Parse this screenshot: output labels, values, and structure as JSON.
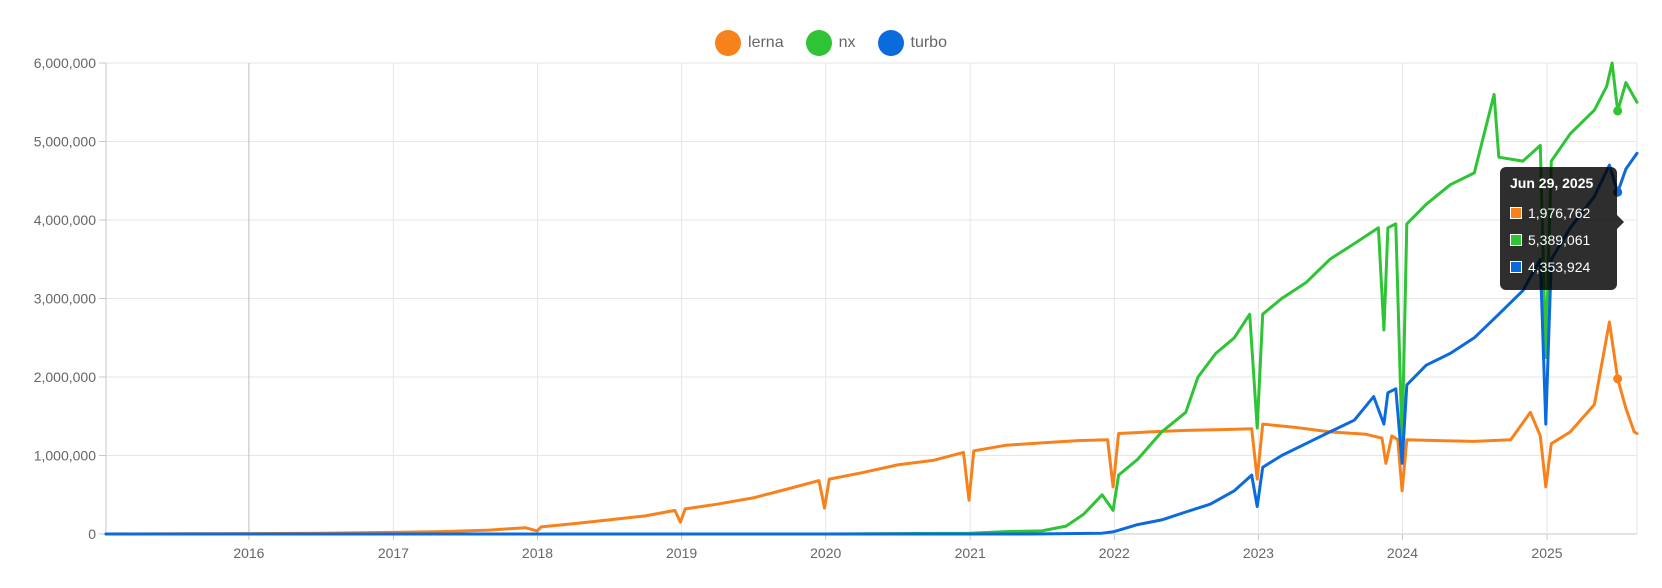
{
  "chart_data": {
    "type": "line",
    "title": "",
    "xlabel": "",
    "ylabel": "",
    "ylim": [
      0,
      6000000
    ],
    "xlim": [
      "2015-01-04",
      "2025-08-17"
    ],
    "grid": true,
    "legend_position": "top-center",
    "y_ticks": [
      "0",
      "1,000,000",
      "2,000,000",
      "3,000,000",
      "4,000,000",
      "5,000,000",
      "6,000,000"
    ],
    "x_ticks": [
      "2016",
      "2017",
      "2018",
      "2019",
      "2020",
      "2021",
      "2022",
      "2023",
      "2024",
      "2025"
    ],
    "series": [
      {
        "name": "lerna",
        "color": "#f7821b",
        "points": [
          [
            "2015-01-04",
            0
          ],
          [
            "2015-07-01",
            2000
          ],
          [
            "2016-01-01",
            5000
          ],
          [
            "2016-07-01",
            10000
          ],
          [
            "2017-01-01",
            20000
          ],
          [
            "2017-05-01",
            30000
          ],
          [
            "2017-09-01",
            50000
          ],
          [
            "2017-12-01",
            80000
          ],
          [
            "2017-12-31",
            40000
          ],
          [
            "2018-01-10",
            90000
          ],
          [
            "2018-04-01",
            130000
          ],
          [
            "2018-07-01",
            180000
          ],
          [
            "2018-10-01",
            230000
          ],
          [
            "2018-12-15",
            300000
          ],
          [
            "2018-12-29",
            150000
          ],
          [
            "2019-01-10",
            320000
          ],
          [
            "2019-04-01",
            380000
          ],
          [
            "2019-07-01",
            460000
          ],
          [
            "2019-10-01",
            580000
          ],
          [
            "2019-12-15",
            680000
          ],
          [
            "2019-12-29",
            330000
          ],
          [
            "2020-01-10",
            700000
          ],
          [
            "2020-04-01",
            780000
          ],
          [
            "2020-07-01",
            880000
          ],
          [
            "2020-10-01",
            940000
          ],
          [
            "2020-12-15",
            1040000
          ],
          [
            "2020-12-29",
            430000
          ],
          [
            "2021-01-10",
            1060000
          ],
          [
            "2021-04-01",
            1130000
          ],
          [
            "2021-07-01",
            1160000
          ],
          [
            "2021-10-01",
            1190000
          ],
          [
            "2021-12-15",
            1200000
          ],
          [
            "2021-12-29",
            600000
          ],
          [
            "2022-01-12",
            1280000
          ],
          [
            "2022-04-01",
            1300000
          ],
          [
            "2022-07-01",
            1320000
          ],
          [
            "2022-10-01",
            1330000
          ],
          [
            "2022-12-15",
            1340000
          ],
          [
            "2022-12-29",
            700000
          ],
          [
            "2023-01-12",
            1400000
          ],
          [
            "2023-04-01",
            1360000
          ],
          [
            "2023-07-01",
            1300000
          ],
          [
            "2023-10-01",
            1270000
          ],
          [
            "2023-11-10",
            1220000
          ],
          [
            "2023-11-20",
            900000
          ],
          [
            "2023-12-05",
            1250000
          ],
          [
            "2023-12-20",
            1200000
          ],
          [
            "2023-12-31",
            550000
          ],
          [
            "2024-01-12",
            1200000
          ],
          [
            "2024-04-01",
            1190000
          ],
          [
            "2024-07-01",
            1180000
          ],
          [
            "2024-10-01",
            1200000
          ],
          [
            "2024-11-20",
            1550000
          ],
          [
            "2024-12-15",
            1250000
          ],
          [
            "2024-12-29",
            600000
          ],
          [
            "2025-01-12",
            1150000
          ],
          [
            "2025-03-01",
            1300000
          ],
          [
            "2025-05-01",
            1650000
          ],
          [
            "2025-06-08",
            2700000
          ],
          [
            "2025-06-29",
            1976762
          ],
          [
            "2025-07-20",
            1600000
          ],
          [
            "2025-08-10",
            1300000
          ],
          [
            "2025-08-17",
            1280000
          ]
        ]
      },
      {
        "name": "nx",
        "color": "#2ec435",
        "points": [
          [
            "2015-01-04",
            0
          ],
          [
            "2016-01-01",
            0
          ],
          [
            "2017-01-01",
            0
          ],
          [
            "2018-01-01",
            0
          ],
          [
            "2019-01-01",
            0
          ],
          [
            "2020-01-01",
            0
          ],
          [
            "2021-01-01",
            10000
          ],
          [
            "2021-04-01",
            30000
          ],
          [
            "2021-07-01",
            40000
          ],
          [
            "2021-09-01",
            100000
          ],
          [
            "2021-10-15",
            250000
          ],
          [
            "2021-12-01",
            500000
          ],
          [
            "2021-12-29",
            300000
          ],
          [
            "2022-01-12",
            750000
          ],
          [
            "2022-03-01",
            950000
          ],
          [
            "2022-05-01",
            1300000
          ],
          [
            "2022-07-01",
            1550000
          ],
          [
            "2022-08-01",
            2000000
          ],
          [
            "2022-09-15",
            2300000
          ],
          [
            "2022-11-01",
            2500000
          ],
          [
            "2022-12-10",
            2800000
          ],
          [
            "2022-12-29",
            1350000
          ],
          [
            "2023-01-12",
            2800000
          ],
          [
            "2023-03-01",
            3000000
          ],
          [
            "2023-05-01",
            3200000
          ],
          [
            "2023-07-01",
            3500000
          ],
          [
            "2023-09-01",
            3700000
          ],
          [
            "2023-11-01",
            3900000
          ],
          [
            "2023-11-15",
            2600000
          ],
          [
            "2023-11-25",
            3900000
          ],
          [
            "2023-12-15",
            3950000
          ],
          [
            "2023-12-31",
            1150000
          ],
          [
            "2024-01-12",
            3950000
          ],
          [
            "2024-03-01",
            4200000
          ],
          [
            "2024-05-01",
            4450000
          ],
          [
            "2024-07-01",
            4600000
          ],
          [
            "2024-08-20",
            5600000
          ],
          [
            "2024-09-01",
            4800000
          ],
          [
            "2024-11-01",
            4750000
          ],
          [
            "2024-12-15",
            4950000
          ],
          [
            "2024-12-29",
            2250000
          ],
          [
            "2025-01-12",
            4750000
          ],
          [
            "2025-03-01",
            5100000
          ],
          [
            "2025-05-01",
            5400000
          ],
          [
            "2025-06-01",
            5700000
          ],
          [
            "2025-06-15",
            6000000
          ],
          [
            "2025-06-29",
            5389061
          ],
          [
            "2025-07-20",
            5750000
          ],
          [
            "2025-08-17",
            5500000
          ]
        ]
      },
      {
        "name": "turbo",
        "color": "#0b6bdd",
        "points": [
          [
            "2015-01-04",
            0
          ],
          [
            "2016-01-01",
            0
          ],
          [
            "2018-01-01",
            0
          ],
          [
            "2020-01-01",
            0
          ],
          [
            "2021-06-01",
            0
          ],
          [
            "2021-12-01",
            10000
          ],
          [
            "2022-01-01",
            30000
          ],
          [
            "2022-03-01",
            120000
          ],
          [
            "2022-05-01",
            180000
          ],
          [
            "2022-07-01",
            280000
          ],
          [
            "2022-09-01",
            380000
          ],
          [
            "2022-11-01",
            550000
          ],
          [
            "2022-12-15",
            750000
          ],
          [
            "2022-12-29",
            350000
          ],
          [
            "2023-01-12",
            850000
          ],
          [
            "2023-03-01",
            1000000
          ],
          [
            "2023-05-01",
            1150000
          ],
          [
            "2023-07-01",
            1300000
          ],
          [
            "2023-09-01",
            1450000
          ],
          [
            "2023-10-20",
            1750000
          ],
          [
            "2023-11-15",
            1400000
          ],
          [
            "2023-11-25",
            1800000
          ],
          [
            "2023-12-15",
            1850000
          ],
          [
            "2023-12-31",
            900000
          ],
          [
            "2024-01-12",
            1900000
          ],
          [
            "2024-03-01",
            2150000
          ],
          [
            "2024-05-01",
            2300000
          ],
          [
            "2024-07-01",
            2500000
          ],
          [
            "2024-09-01",
            2800000
          ],
          [
            "2024-11-01",
            3100000
          ],
          [
            "2024-12-15",
            3500000
          ],
          [
            "2024-12-29",
            1400000
          ],
          [
            "2025-01-12",
            3500000
          ],
          [
            "2025-03-01",
            3900000
          ],
          [
            "2025-05-01",
            4300000
          ],
          [
            "2025-06-08",
            4700000
          ],
          [
            "2025-06-29",
            4353924
          ],
          [
            "2025-07-20",
            4650000
          ],
          [
            "2025-08-17",
            4850000
          ]
        ]
      }
    ]
  },
  "tooltip": {
    "date": "Jun 29, 2025",
    "rows": [
      {
        "value": "1,976,762",
        "color": "#f7821b"
      },
      {
        "value": "5,389,061",
        "color": "#2ec435"
      },
      {
        "value": "4,353,924",
        "color": "#0b6bdd"
      }
    ]
  }
}
